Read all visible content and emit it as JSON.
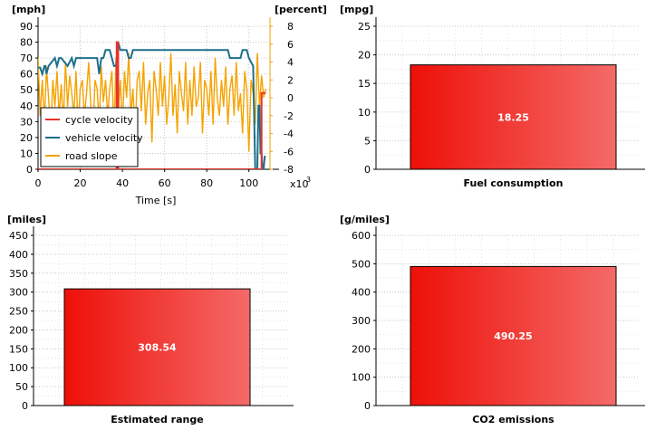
{
  "chart_data": [
    {
      "type": "line",
      "xlabel": "Time [s]",
      "x_multiplier": "x10",
      "x_multiplier_exp": "3",
      "y_unit": "[mph]",
      "y2_unit": "[percent]",
      "xlim": [
        0,
        110
      ],
      "ylim": [
        0,
        90
      ],
      "y2lim": [
        -8,
        8
      ],
      "x_ticks": [
        "0",
        "20",
        "40",
        "60",
        "80",
        "100"
      ],
      "y_ticks": [
        "0",
        "10",
        "20",
        "30",
        "40",
        "50",
        "60",
        "70",
        "80",
        "90"
      ],
      "y2_ticks": [
        "-8",
        "-6",
        "-4",
        "-2",
        "0",
        "2",
        "4",
        "6",
        "8"
      ],
      "legend_position": "bottom-left",
      "grid": true,
      "series": [
        {
          "name": "cycle velocity",
          "color": "#e8322a",
          "axis": "left",
          "x": [
            0,
            37.3,
            37.3,
            38.0,
            38.0,
            106,
            106,
            108
          ],
          "y": [
            0,
            0,
            80,
            80,
            0,
            0,
            48,
            48
          ]
        },
        {
          "name": "vehicle velocity",
          "color": "#1f6f8b",
          "axis": "left",
          "x": [
            0,
            1,
            2,
            3,
            3.5,
            4,
            5,
            8,
            9,
            10,
            11,
            14,
            16,
            17,
            18,
            19,
            20,
            28,
            29,
            30,
            31,
            32,
            33,
            34,
            35,
            36,
            37,
            38,
            39,
            40,
            41,
            42,
            43,
            44,
            45,
            46,
            47,
            60,
            61,
            70,
            71,
            90,
            91,
            96,
            97,
            98,
            99,
            100,
            102,
            103,
            104,
            104.5,
            105,
            105.5,
            106,
            106.5,
            107,
            107.5,
            108
          ],
          "y": [
            64,
            64,
            60,
            65,
            65,
            60,
            65,
            70,
            65,
            70,
            70,
            65,
            70,
            65,
            70,
            70,
            70,
            70,
            60,
            70,
            70,
            75,
            75,
            75,
            70,
            65,
            65,
            80,
            75,
            75,
            75,
            75,
            70,
            70,
            75,
            75,
            75,
            75,
            75,
            75,
            75,
            75,
            70,
            70,
            75,
            75,
            75,
            70,
            65,
            0,
            0,
            40,
            40,
            10,
            10,
            0,
            0,
            8,
            8
          ]
        },
        {
          "name": "road slope",
          "color": "#f5a300",
          "axis": "right",
          "x": [
            0,
            1,
            2,
            3,
            4,
            5,
            6,
            7,
            8,
            9,
            10,
            11,
            12,
            13,
            14,
            15,
            16,
            17,
            18,
            19,
            20,
            21,
            22,
            23,
            24,
            25,
            26,
            27,
            28,
            29,
            30,
            31,
            32,
            33,
            34,
            35,
            36,
            37,
            38,
            39,
            40,
            41,
            42,
            43,
            44,
            45,
            46,
            47,
            48,
            49,
            50,
            51,
            52,
            53,
            54,
            55,
            56,
            57,
            58,
            59,
            60,
            61,
            62,
            63,
            64,
            65,
            66,
            67,
            68,
            69,
            70,
            71,
            72,
            73,
            74,
            75,
            76,
            77,
            78,
            79,
            80,
            81,
            82,
            83,
            84,
            85,
            86,
            87,
            88,
            89,
            90,
            91,
            92,
            93,
            94,
            95,
            96,
            97,
            98,
            99,
            100,
            101,
            102,
            103,
            104,
            105,
            106,
            107,
            108
          ],
          "y": [
            4.5,
            -2,
            2,
            -3,
            3.5,
            0,
            -4,
            2,
            -1,
            3,
            -2,
            1.5,
            -3,
            4,
            -1,
            2.5,
            0.5,
            -2,
            3,
            -3.5,
            1,
            2,
            -2,
            0.5,
            4,
            -1,
            -5,
            2,
            1,
            -3,
            3.5,
            -0.5,
            2,
            -2,
            1,
            3,
            -4,
            4.5,
            -2,
            2,
            -3.5,
            3,
            0,
            5,
            -2,
            1,
            -4,
            2,
            3,
            -1.5,
            4,
            -3,
            0.5,
            2,
            -5,
            3,
            1,
            -2,
            4,
            -1,
            2.5,
            -3,
            0,
            5,
            -2,
            1.5,
            -4,
            3,
            0.5,
            -1.5,
            4,
            -3,
            2,
            -2,
            3.5,
            -1,
            0,
            4,
            -4,
            2,
            1,
            -2,
            3,
            -3,
            4.5,
            0,
            -2,
            2,
            -1,
            3.5,
            -3,
            1,
            2.5,
            -2,
            4,
            -1.5,
            0.5,
            -4,
            3,
            1,
            -6,
            2,
            0.5,
            -3,
            5,
            -1,
            2.5,
            0,
            1
          ]
        }
      ]
    },
    {
      "type": "bar",
      "categories": [
        "Fuel consumption"
      ],
      "values": [
        18.25
      ],
      "value_labels": [
        "18.25"
      ],
      "y_unit": "[mpg]",
      "ylim": [
        0,
        25
      ],
      "y_ticks": [
        "0",
        "5",
        "10",
        "15",
        "20",
        "25"
      ],
      "bar_color_start": "#ee1008",
      "bar_color_end": "#f46a68",
      "grid": true
    },
    {
      "type": "bar",
      "categories": [
        "Estimated range"
      ],
      "values": [
        308.54
      ],
      "value_labels": [
        "308.54"
      ],
      "y_unit": "[miles]",
      "ylim": [
        0,
        450
      ],
      "y_ticks": [
        "0",
        "50",
        "100",
        "150",
        "200",
        "250",
        "300",
        "350",
        "400",
        "450"
      ],
      "bar_color_start": "#ee1008",
      "bar_color_end": "#f46a68",
      "grid": true
    },
    {
      "type": "bar",
      "categories": [
        "CO2 emissions"
      ],
      "values": [
        490.25
      ],
      "value_labels": [
        "490.25"
      ],
      "y_unit": "[g/miles]",
      "ylim": [
        0,
        600
      ],
      "y_ticks": [
        "0",
        "100",
        "200",
        "300",
        "400",
        "500",
        "600"
      ],
      "bar_color_start": "#ee1008",
      "bar_color_end": "#f46a68",
      "grid": true
    }
  ]
}
